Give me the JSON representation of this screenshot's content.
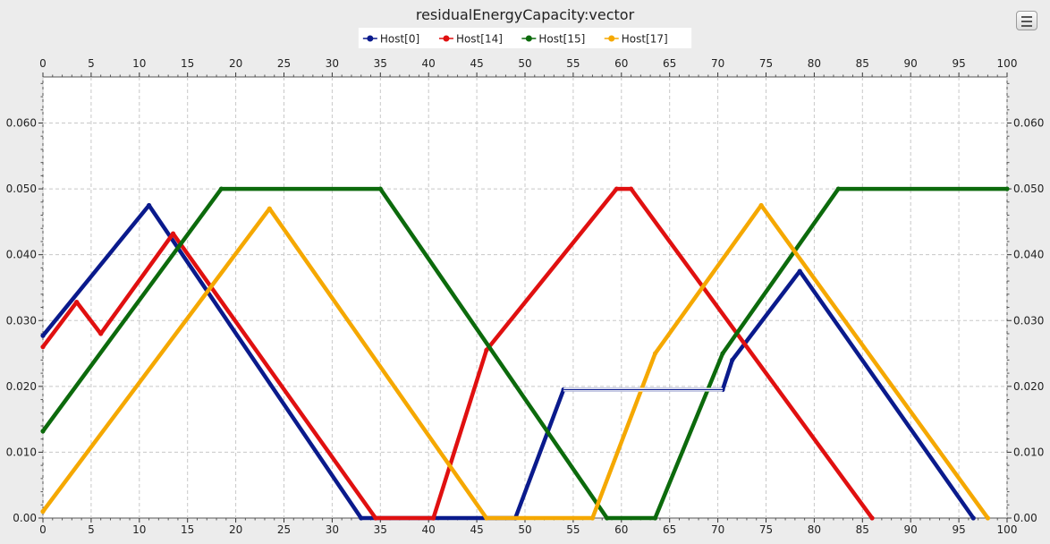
{
  "chart_data": {
    "type": "line",
    "title": "residualEnergyCapacity:vector",
    "xlim": [
      0,
      100
    ],
    "ylim": [
      0,
      0.067
    ],
    "x_ticks": [
      0,
      5,
      10,
      15,
      20,
      25,
      30,
      35,
      40,
      45,
      50,
      55,
      60,
      65,
      70,
      75,
      80,
      85,
      90,
      95,
      100
    ],
    "y_ticks": [
      0,
      0.01,
      0.02,
      0.03,
      0.04,
      0.05,
      0.06
    ],
    "y_tick_labels": [
      "0.00",
      "0.010",
      "0.020",
      "0.030",
      "0.040",
      "0.050",
      "0.060"
    ],
    "grid": true,
    "legend_position": "top-center",
    "series": [
      {
        "name": "Host[0]",
        "color": "#0a1a8c",
        "points": [
          [
            0,
            0.0277
          ],
          [
            11,
            0.0475
          ],
          [
            33,
            0
          ],
          [
            49,
            0
          ],
          [
            54,
            0.0195
          ],
          [
            70.5,
            0.0195
          ],
          [
            71.5,
            0.024
          ],
          [
            78.5,
            0.0375
          ],
          [
            96.5,
            0
          ]
        ]
      },
      {
        "name": "Host[14]",
        "color": "#e01010",
        "points": [
          [
            0,
            0.026
          ],
          [
            3.5,
            0.0328
          ],
          [
            6,
            0.028
          ],
          [
            13.5,
            0.0432
          ],
          [
            34.5,
            0
          ],
          [
            40.5,
            0
          ],
          [
            46,
            0.0255
          ],
          [
            59.5,
            0.05
          ],
          [
            61,
            0.05
          ],
          [
            86,
            0
          ]
        ]
      },
      {
        "name": "Host[15]",
        "color": "#0c6a0c",
        "points": [
          [
            0,
            0.0132
          ],
          [
            18.5,
            0.05
          ],
          [
            35,
            0.05
          ],
          [
            58.5,
            0
          ],
          [
            63.5,
            0
          ],
          [
            70.5,
            0.025
          ],
          [
            82.5,
            0.05
          ],
          [
            100,
            0.05
          ]
        ]
      },
      {
        "name": "Host[17]",
        "color": "#f5a800",
        "points": [
          [
            0,
            0.001
          ],
          [
            23.5,
            0.047
          ],
          [
            46,
            0
          ],
          [
            57,
            0
          ],
          [
            63.5,
            0.025
          ],
          [
            74.5,
            0.0475
          ],
          [
            98,
            0
          ]
        ]
      }
    ]
  }
}
